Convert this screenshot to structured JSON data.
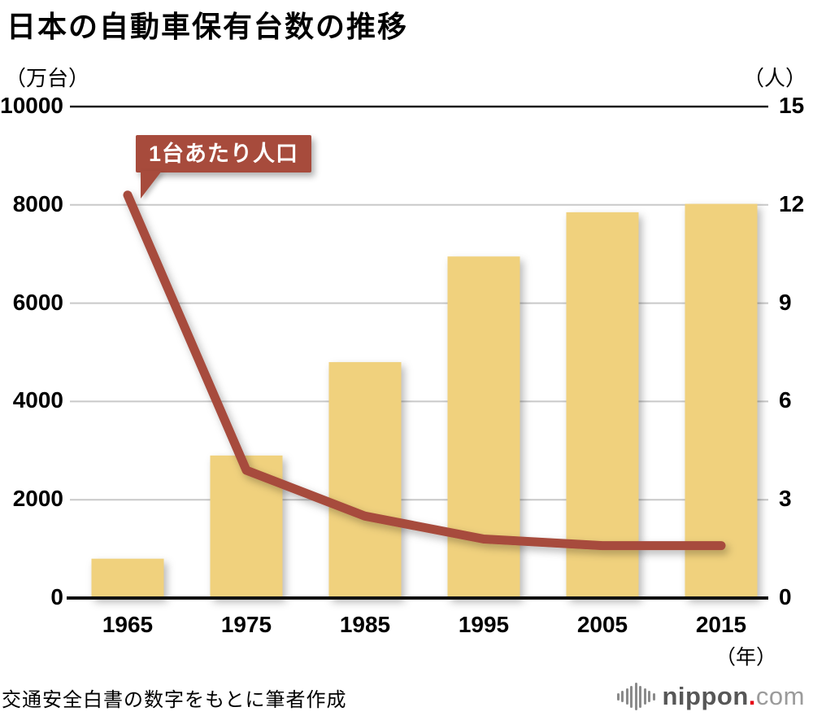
{
  "page": {
    "title": "日本の自動車保有台数の推移"
  },
  "chart_data": {
    "type": "combo-bar-line",
    "title": "日本の自動車保有台数の推移",
    "categories": [
      "1965",
      "1975",
      "1985",
      "1995",
      "2005",
      "2015"
    ],
    "x_unit_label": "（年）",
    "series": [
      {
        "name": "自動車保有台数",
        "chart_type": "bar",
        "axis": "left",
        "unit": "万台",
        "values": [
          800,
          2900,
          4800,
          6950,
          7850,
          8020
        ],
        "color": "#F0D17D"
      },
      {
        "name": "1台あたり人口",
        "chart_type": "line",
        "axis": "right",
        "unit": "人",
        "values": [
          12.3,
          3.9,
          2.5,
          1.8,
          1.6,
          1.6
        ],
        "color": "#A74B3C"
      }
    ],
    "left_axis": {
      "unit_label": "（万台）",
      "min": 0,
      "max": 10000,
      "ticks": [
        0,
        2000,
        4000,
        6000,
        8000,
        10000
      ]
    },
    "right_axis": {
      "unit_label": "（人）",
      "min": 0,
      "max": 15,
      "ticks": [
        0,
        3,
        6,
        9,
        12,
        15
      ]
    },
    "grid": true,
    "legend": "callout annotation on line series"
  },
  "annotation": {
    "label": "1台あたり人口"
  },
  "footer": {
    "source_note": "交通安全白書の数字をもとに筆者作成",
    "logo": {
      "text_bold": "nippon",
      "dot": ".",
      "text_light": "com"
    }
  },
  "colors": {
    "bar_fill": "#F0D17D",
    "line_stroke": "#A74B3C",
    "callout_bg": "#A74B3C",
    "grid_mid": "#c9c9c9",
    "grid_top": "#1a1a1a",
    "axis_base": "#111111",
    "logo_dark": "#575757",
    "logo_light": "#9b9b9b",
    "logo_dot_red": "#e60012"
  }
}
